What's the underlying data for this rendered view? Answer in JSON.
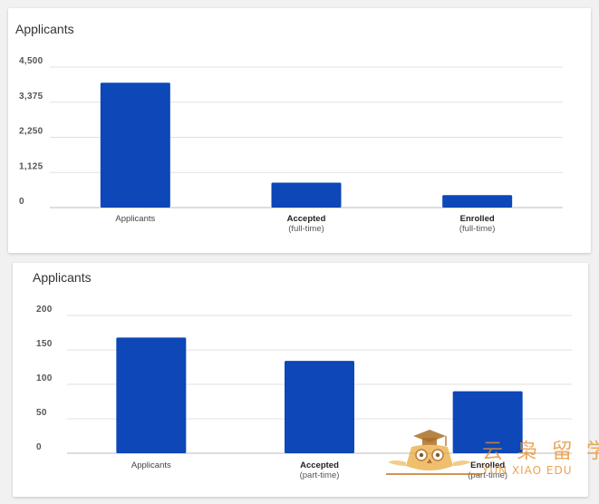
{
  "chart_data": [
    {
      "type": "bar",
      "title": "Applicants",
      "categories": [
        "Applicants",
        "Accepted",
        "Enrolled"
      ],
      "category_sublabels": [
        "",
        "(full-time)",
        "(full-time)"
      ],
      "values": [
        4000,
        800,
        400
      ],
      "ylim": [
        0,
        4500
      ],
      "yticks": [
        "0",
        "1,125",
        "2,250",
        "3,375",
        "4,500"
      ],
      "ytick_values": [
        0,
        1125,
        2250,
        3375,
        4500
      ],
      "xlabel": "",
      "ylabel": "",
      "grid": true,
      "bar_color": "#0d47b8"
    },
    {
      "type": "bar",
      "title": "Applicants",
      "categories": [
        "Applicants",
        "Accepted",
        "Enrolled"
      ],
      "category_sublabels": [
        "",
        "(part-time)",
        "(part-time)"
      ],
      "values": [
        168,
        134,
        90
      ],
      "ylim": [
        0,
        200
      ],
      "yticks": [
        "0",
        "50",
        "100",
        "150",
        "200"
      ],
      "ytick_values": [
        0,
        50,
        100,
        150,
        200
      ],
      "xlabel": "",
      "ylabel": "",
      "grid": true,
      "bar_color": "#0d47b8"
    }
  ],
  "watermark": {
    "chinese": "云 枭 留 学",
    "english": "YUN XIAO EDU",
    "color": "#e68c28"
  }
}
